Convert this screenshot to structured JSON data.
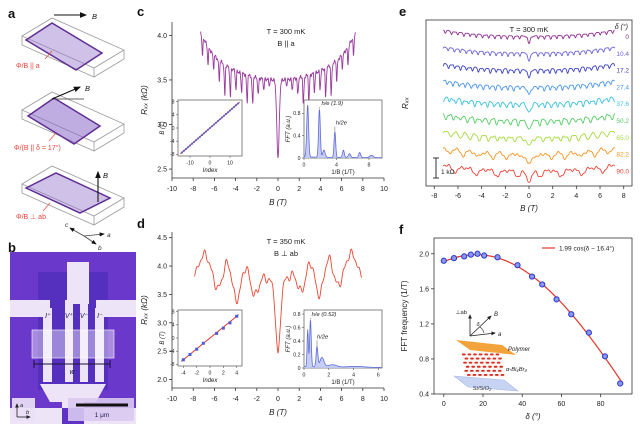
{
  "figure": {
    "panels": {
      "a": "a",
      "b": "b",
      "c": "c",
      "d": "d",
      "e": "e",
      "f": "f"
    }
  },
  "panel_a": {
    "field_label": "B",
    "diagrams": [
      {
        "label": "Φ/B || a"
      },
      {
        "label": "Φ/(B || δ = 17°)"
      },
      {
        "label": "Φ/B ⊥ ab"
      }
    ],
    "axis_c": "c",
    "axis_a": "a",
    "axis_b": "b"
  },
  "panel_b": {
    "electrodes": [
      "I⁺",
      "V⁺",
      "V⁻",
      "I⁻"
    ],
    "width_label": "w",
    "scale_label": "1 μm",
    "axis_a": "a",
    "axis_b": "b"
  },
  "chart_data": [
    {
      "panel": "c",
      "type": "line",
      "annotations": [
        "T = 300 mK",
        "B || a"
      ],
      "xlabel": "B (T)",
      "ylabel": "Rₓₓ (kΩ)",
      "xlim": [
        -10,
        10
      ],
      "xticks": [
        -10,
        -8,
        -6,
        -4,
        -2,
        0,
        2,
        4,
        6,
        8,
        10
      ],
      "xtick_labels": [
        "-10",
        "-8",
        "-6",
        "-4",
        "-2",
        "0",
        "2",
        "4",
        "6",
        "8",
        "10"
      ],
      "ylim": [
        2.4,
        4.15
      ],
      "yticks": [
        2.5,
        3.0,
        3.5,
        4.0
      ],
      "ytick_labels": [
        "2.5",
        "3.0",
        "3.5",
        "4.0"
      ],
      "color": "#9A3A9E",
      "series_params": {
        "B_max": 7.3,
        "osc_freq_invT": 1.9,
        "R0_kohm": 2.62,
        "R_center_kohm": 3.5,
        "R_edge_kohm": 4.05
      },
      "inset_index": {
        "xlabel": "Index",
        "ylabel": "B (T)",
        "xlim": [
          -16,
          16
        ],
        "xticks": [
          -10,
          0,
          10
        ],
        "xtick_labels": [
          "-10",
          "0",
          "10"
        ],
        "ylim": [
          -8.5,
          8.5
        ],
        "yticks": [
          -8,
          -4,
          0,
          4,
          8
        ],
        "ytick_labels": [
          "-8",
          "-4",
          "0",
          "4",
          "8"
        ],
        "slope_T_per_index": 0.53,
        "index_range": [
          -14,
          14
        ],
        "line_color": "#E23B32",
        "dot_color": "#4A5BDB"
      },
      "inset_fft": {
        "xlabel": "1/B (1/T)",
        "ylabel": "FFT (a.u.)",
        "xlim": [
          0,
          9.6
        ],
        "xticks": [
          0,
          4,
          8
        ],
        "xtick_labels": [
          "0",
          "4",
          "8"
        ],
        "ylim": [
          0,
          1.04
        ],
        "yticks": [
          0,
          0.4,
          0.8
        ],
        "ytick_labels": [
          "0",
          "0.4",
          "0.8"
        ],
        "peaks": [
          {
            "x": 0.45,
            "h": 0.93,
            "w": 0.16
          },
          {
            "x": 1.9,
            "h": 0.86,
            "w": 0.15
          },
          {
            "x": 2.45,
            "h": 0.13,
            "w": 0.2
          },
          {
            "x": 3.8,
            "h": 0.46,
            "w": 0.14
          },
          {
            "x": 4.85,
            "h": 0.13,
            "w": 0.16
          },
          {
            "x": 5.6,
            "h": 0.07,
            "w": 0.2
          },
          {
            "x": 6.85,
            "h": 0.09,
            "w": 0.18
          },
          {
            "x": 8.3,
            "h": 0.04,
            "w": 0.3
          }
        ],
        "peak_labels": [
          {
            "text": "h/e (1.9)",
            "lx": 2.15,
            "ly": 0.95,
            "px": 1.9,
            "ph": 0.86
          },
          {
            "text": "h/2e",
            "lx": 3.9,
            "ly": 0.6,
            "px": 3.8,
            "ph": 0.46
          }
        ],
        "fill": "#BCC6F5",
        "stroke": "#5E6BD8"
      }
    },
    {
      "panel": "d",
      "type": "line",
      "annotations": [
        "T = 350 mK",
        "B ⊥ ab"
      ],
      "xlabel": "B (T)",
      "ylabel": "Rₓₓ (kΩ)",
      "xlim": [
        -10,
        10
      ],
      "xticks": [
        -10,
        -8,
        -6,
        -4,
        -2,
        0,
        2,
        4,
        6,
        8,
        10
      ],
      "xtick_labels": [
        "-10",
        "-8",
        "-6",
        "-4",
        "-2",
        "0",
        "2",
        "4",
        "6",
        "8",
        "10"
      ],
      "ylim": [
        1.85,
        4.6
      ],
      "yticks": [
        2.0,
        2.5,
        3.0,
        3.5,
        4.0,
        4.5
      ],
      "ytick_labels": [
        "2.0",
        "2.5",
        "3.0",
        "3.5",
        "4.0",
        "4.5"
      ],
      "color": "#ED4633",
      "series_params": {
        "B_max": 7.9,
        "osc_freq_invT": 0.52,
        "R0_kohm": 2.55,
        "R_center_kohm": 3.7,
        "R_edge_kohm": 4.47
      },
      "inset_index": {
        "xlabel": "Index",
        "ylabel": "B (T)",
        "xlim": [
          -4.8,
          4.8
        ],
        "xticks": [
          -4,
          -2,
          0,
          2,
          4
        ],
        "xtick_labels": [
          "-4",
          "-2",
          "0",
          "2",
          "4"
        ],
        "ylim": [
          -8.5,
          8.5
        ],
        "yticks": [
          -8,
          -4,
          0,
          4,
          8
        ],
        "ytick_labels": [
          "-8",
          "-4",
          "0",
          "4",
          "8"
        ],
        "slope_T_per_index": 1.65,
        "points": [
          [
            -4,
            -6.6
          ],
          [
            -3,
            -5.0
          ],
          [
            -2,
            -3.4
          ],
          [
            -1,
            -1.6
          ],
          [
            1,
            1.4
          ],
          [
            2,
            3.0
          ],
          [
            3,
            4.6
          ],
          [
            4,
            6.6
          ]
        ],
        "line_color": "#E23B32",
        "dot_color": "#4A5BDB"
      },
      "inset_fft": {
        "xlabel": "1/B (1/T)",
        "ylabel": "FFT (a.u.)",
        "xlim": [
          0,
          6.3
        ],
        "xticks": [
          0,
          2,
          4,
          6
        ],
        "xtick_labels": [
          "0",
          "2",
          "4",
          "6"
        ],
        "ylim": [
          0,
          0.86
        ],
        "yticks": [
          0,
          0.2,
          0.4,
          0.6,
          0.8
        ],
        "ytick_labels": [
          "0",
          "0.2",
          "0.4",
          "0.6",
          "0.8"
        ],
        "peaks": [
          {
            "x": 0.3,
            "h": 0.55,
            "w": 0.07
          },
          {
            "x": 0.52,
            "h": 0.7,
            "w": 0.09
          },
          {
            "x": 1.05,
            "h": 0.3,
            "w": 0.1
          },
          {
            "x": 1.45,
            "h": 0.14,
            "w": 0.22
          },
          {
            "x": 2.3,
            "h": 0.035,
            "w": 0.5
          },
          {
            "x": 4.2,
            "h": 0.015,
            "w": 0.9
          }
        ],
        "peak_labels": [
          {
            "text": "h/e (0.52)",
            "lx": 0.62,
            "ly": 0.77,
            "px": 0.52,
            "ph": 0.7
          },
          {
            "text": "h/2e",
            "lx": 1.05,
            "ly": 0.44,
            "px": 1.05,
            "ph": 0.3
          }
        ],
        "fill": "#BCC6F5",
        "stroke": "#5E6BD8"
      }
    },
    {
      "panel": "e",
      "type": "line-stack",
      "annotations": [
        "T = 300 mK"
      ],
      "delta_header": "δ (°)",
      "xlabel": "B (T)",
      "ylabel": "Rₓₓ",
      "xlim": [
        -8.7,
        8.7
      ],
      "xticks": [
        -8,
        -6,
        -4,
        -2,
        0,
        2,
        4,
        6,
        8
      ],
      "xtick_labels": [
        "-8",
        "-6",
        "-4",
        "-2",
        "0",
        "2",
        "4",
        "6",
        "8"
      ],
      "scale_bar_label": "1 kΩ",
      "series": [
        {
          "delta_label": "0",
          "color": "#8C2D8F",
          "fft_freq_invT": 1.91
        },
        {
          "delta_label": "10.4",
          "color": "#6C63D6",
          "fft_freq_invT": 1.98
        },
        {
          "delta_label": "17.2",
          "color": "#3A3FBF",
          "fft_freq_invT": 1.99
        },
        {
          "delta_label": "27.4",
          "color": "#4895E8",
          "fft_freq_invT": 1.95
        },
        {
          "delta_label": "37.6",
          "color": "#38C0DC",
          "fft_freq_invT": 1.86
        },
        {
          "delta_label": "50.2",
          "color": "#57CD66",
          "fft_freq_invT": 1.64
        },
        {
          "delta_label": "65.0",
          "color": "#A6D93F",
          "fft_freq_invT": 1.3
        },
        {
          "delta_label": "82.2",
          "color": "#F7941D",
          "fft_freq_invT": 0.81
        },
        {
          "delta_label": "90.0",
          "color": "#EF4337",
          "fft_freq_invT": 0.56
        }
      ]
    },
    {
      "panel": "f",
      "type": "scatter",
      "legend": "1.99 cos(δ − 16.4°)",
      "xlabel": "δ (°)",
      "ylabel": "FFT frequency (1/T)",
      "xlim": [
        -5,
        96
      ],
      "xticks": [
        0,
        20,
        40,
        60,
        80
      ],
      "xtick_labels": [
        "0",
        "20",
        "40",
        "60",
        "80"
      ],
      "ylim": [
        0.4,
        2.18
      ],
      "yticks": [
        0.4,
        0.8,
        1.2,
        1.6,
        2.0
      ],
      "ytick_labels": [
        "0.4",
        "0.8",
        "1.2",
        "1.6",
        "2.0"
      ],
      "fit": {
        "amplitude_invT": 1.99,
        "phase_deg": 16.4,
        "color": "#E8332A"
      },
      "points": {
        "x": [
          0,
          5.2,
          10.4,
          13.8,
          17.2,
          20.6,
          27.4,
          37.6,
          45,
          50.2,
          57.5,
          65,
          74,
          82.2,
          90
        ],
        "y": [
          1.92,
          1.95,
          1.97,
          1.99,
          2.0,
          1.98,
          1.96,
          1.87,
          1.74,
          1.65,
          1.48,
          1.31,
          1.1,
          0.83,
          0.52
        ],
        "fill": "#8A97F0",
        "stroke": "#2B36C8"
      },
      "inset": {
        "perp_label": "⊥ab",
        "field_label": "B",
        "angle_label": "δ",
        "axis_label": "a",
        "polymer_label": "Polymer",
        "crystal_label": "α-Bi₄Br₄",
        "substrate_label": "Si/SiO₂"
      }
    }
  ]
}
